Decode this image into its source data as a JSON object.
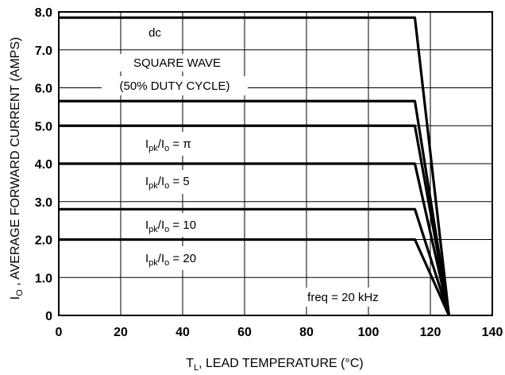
{
  "chart_data": {
    "type": "line",
    "title": "",
    "xlabel": {
      "main": "T",
      "sub": "L",
      "rest": ", LEAD TEMPERATURE (°C)"
    },
    "ylabel": {
      "main": "I",
      "sub": "O",
      "rest": " , AVERAGE FORWARD CURRENT (AMPS)"
    },
    "xlim": [
      0,
      140
    ],
    "ylim": [
      0,
      8.0
    ],
    "xticks": [
      0,
      20,
      40,
      60,
      80,
      100,
      120,
      140
    ],
    "yticks": [
      0,
      1.0,
      2.0,
      3.0,
      4.0,
      5.0,
      6.0,
      7.0,
      8.0
    ],
    "ytick_labels": [
      "0",
      "1.0",
      "2.0",
      "3.0",
      "4.0",
      "5.0",
      "6.0",
      "7.0",
      "8.0"
    ],
    "grid": true,
    "series": [
      {
        "name": "dc",
        "x": [
          0,
          115,
          126
        ],
        "y": [
          7.85,
          7.85,
          0
        ]
      },
      {
        "name": "SQUARE WAVE (50% DUTY CYCLE)",
        "x": [
          0,
          115,
          126
        ],
        "y": [
          5.65,
          5.65,
          0
        ]
      },
      {
        "name": "Ipk/Io = π",
        "x": [
          0,
          115,
          126
        ],
        "y": [
          5.0,
          5.0,
          0
        ]
      },
      {
        "name": "Ipk/Io = 5",
        "x": [
          0,
          115,
          126
        ],
        "y": [
          4.0,
          4.0,
          0
        ]
      },
      {
        "name": "Ipk/Io = 10",
        "x": [
          0,
          115,
          126
        ],
        "y": [
          2.8,
          2.8,
          0
        ]
      },
      {
        "name": "Ipk/Io = 20",
        "x": [
          0,
          115,
          126
        ],
        "y": [
          2.0,
          2.0,
          0
        ]
      }
    ],
    "annotations": {
      "dc": "dc",
      "square_line1": "SQUARE WAVE",
      "square_line2": "(50% DUTY CYCLE)",
      "ipk_pi": {
        "a": "I",
        "a_sub": "pk",
        "b": "/I",
        "b_sub": "o",
        "c": " = π"
      },
      "ipk_5": {
        "a": "I",
        "a_sub": "pk",
        "b": "/I",
        "b_sub": "o",
        "c": " = 5"
      },
      "ipk_10": {
        "a": "I",
        "a_sub": "pk",
        "b": "/I",
        "b_sub": "o",
        "c": " = 10"
      },
      "ipk_20": {
        "a": "I",
        "a_sub": "pk",
        "b": "/I",
        "b_sub": "o",
        "c": " = 20"
      },
      "freq": "freq = 20 kHz"
    }
  }
}
